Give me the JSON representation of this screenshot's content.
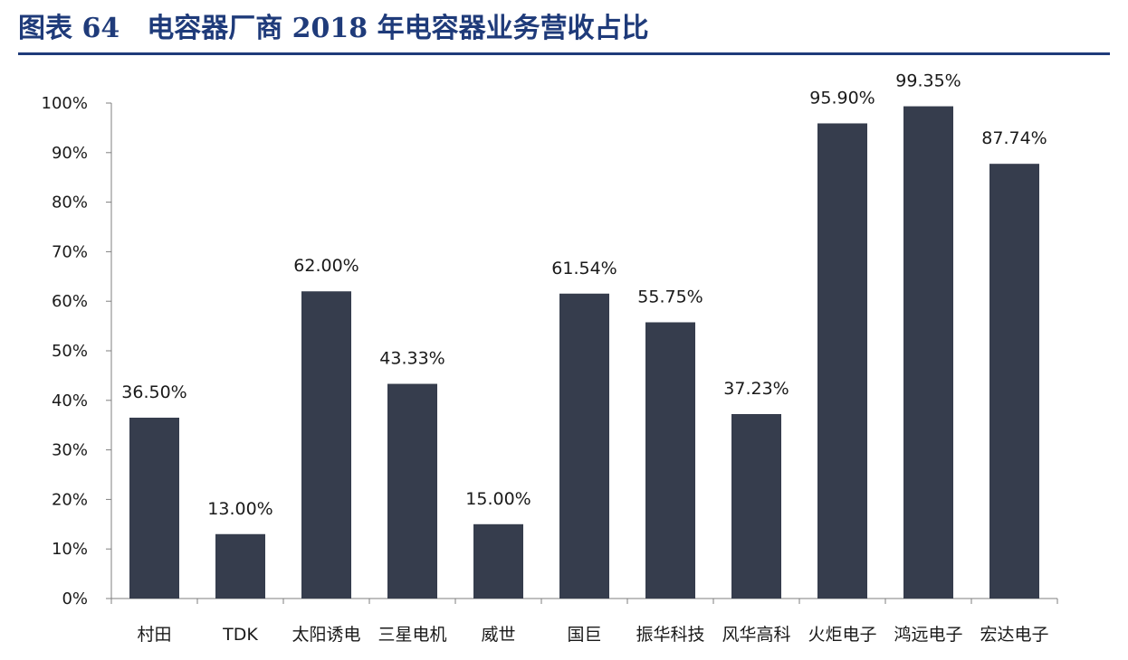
{
  "title": "图表 64　电容器厂商 2018 年电容器业务营收占比",
  "colors": {
    "bar": "#363d4d",
    "axis": "#7f7f7f",
    "title": "#1f3b7a"
  },
  "chart_data": {
    "type": "bar",
    "categories": [
      "村田",
      "TDK",
      "太阳诱电",
      "三星电机",
      "威世",
      "国巨",
      "振华科技",
      "风华高科",
      "火炬电子",
      "鸿远电子",
      "宏达电子"
    ],
    "values": [
      36.5,
      13.0,
      62.0,
      43.33,
      15.0,
      61.54,
      55.75,
      37.23,
      95.9,
      99.35,
      87.74
    ],
    "data_labels": [
      "36.50%",
      "13.00%",
      "62.00%",
      "43.33%",
      "15.00%",
      "61.54%",
      "55.75%",
      "37.23%",
      "95.90%",
      "99.35%",
      "87.74%"
    ],
    "y_ticks": [
      "0%",
      "10%",
      "20%",
      "30%",
      "40%",
      "50%",
      "60%",
      "70%",
      "80%",
      "90%",
      "100%"
    ],
    "ylim": [
      0,
      100
    ],
    "grid": false,
    "legend": "none"
  }
}
